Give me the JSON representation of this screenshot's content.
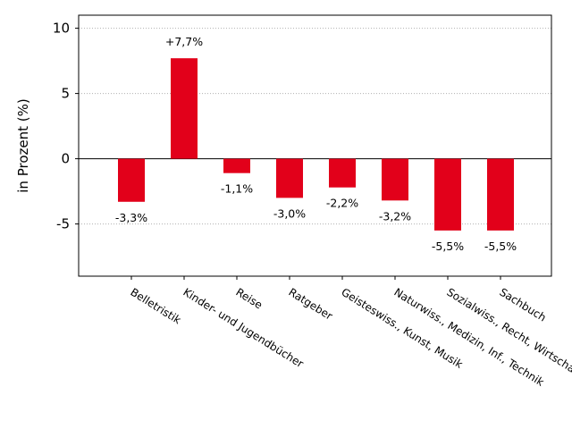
{
  "chart_data": {
    "type": "bar",
    "title": "",
    "xlabel": "",
    "ylabel": "in Prozent (%)",
    "categories": [
      "Belletristik",
      "Kinder- und Jugendbücher",
      "Reise",
      "Ratgeber",
      "Geisteswiss., Kunst, Musik",
      "Naturwiss., Medizin, Inf., Technik",
      "Sozialwiss., Recht, Wirtschaft",
      "Sachbuch"
    ],
    "values": [
      -3.3,
      7.7,
      -1.1,
      -3.0,
      -2.2,
      -3.2,
      -5.5,
      -5.5
    ],
    "data_labels": [
      "-3,3%",
      "+7,7%",
      "-1,1%",
      "-3,0%",
      "-2,2%",
      "-3,2%",
      "-5,5%",
      "-5,5%"
    ],
    "ylim": [
      -9,
      11
    ],
    "yticks": [
      -5,
      0,
      5,
      10
    ],
    "ytick_labels": [
      "-5",
      "0",
      "5",
      "10"
    ],
    "grid": "horizontal-dotted",
    "legend": "none",
    "bar_color": "#e2001a"
  }
}
